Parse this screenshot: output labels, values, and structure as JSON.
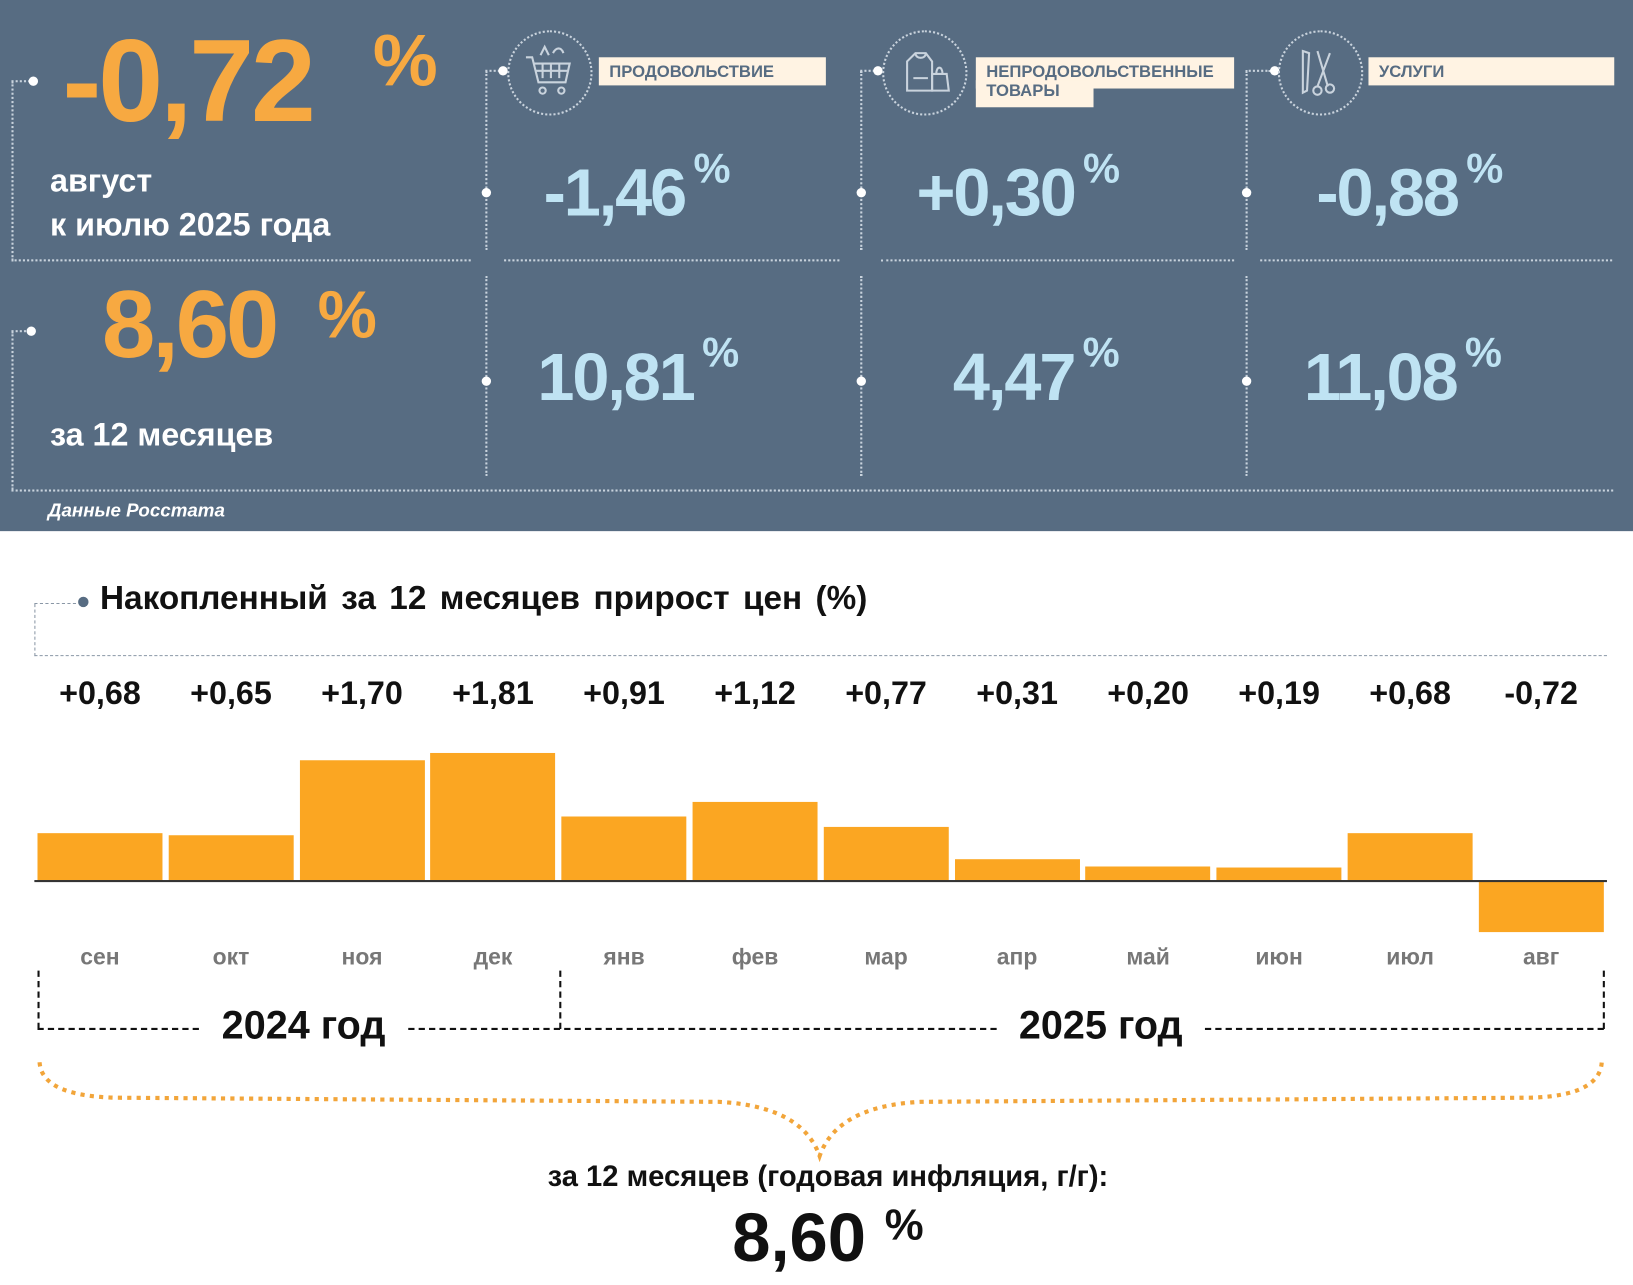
{
  "summary": {
    "monthly_value": "-0,72",
    "percent_sign": "%",
    "monthly_label_line1": "август",
    "monthly_label_line2": "к июлю 2025 года",
    "annual_value": "8,60",
    "annual_label": "за 12 месяцев",
    "source": "Данные Росстата"
  },
  "categories": [
    {
      "name": "ПРОДОВОЛЬСТВИЕ",
      "icon": "shopping-cart-icon",
      "monthly": "-1,46",
      "annual": "10,81"
    },
    {
      "name": "НЕПРОДОВОЛЬСТВЕННЫЕ",
      "name2": "ТОВАРЫ",
      "icon": "clothes-bag-icon",
      "monthly": "+0,30",
      "annual": "4,47"
    },
    {
      "name": "УСЛУГИ",
      "icon": "comb-scissors-icon",
      "monthly": "-0,88",
      "annual": "11,08"
    }
  ],
  "chart_data": {
    "type": "bar",
    "title": "Накопленный за 12 месяцев прирост цен (%)",
    "categories": [
      "сен",
      "окт",
      "ноя",
      "дек",
      "янв",
      "фев",
      "мар",
      "апр",
      "май",
      "июн",
      "июл",
      "авг"
    ],
    "values": [
      0.68,
      0.65,
      1.7,
      1.81,
      0.91,
      1.12,
      0.77,
      0.31,
      0.2,
      0.19,
      0.68,
      -0.72
    ],
    "value_labels": [
      "+0,68",
      "+0,65",
      "+1,70",
      "+1,81",
      "+0,91",
      "+1,12",
      "+0,77",
      "+0,31",
      "+0,20",
      "+0,19",
      "+0,68",
      "-0,72"
    ],
    "groups": [
      "2024 год",
      "2025 год"
    ],
    "total_label": "за 12 месяцев (годовая инфляция, г/г):",
    "total_value": "8,60",
    "total_unit": "%",
    "bar_color": "#fba622"
  }
}
